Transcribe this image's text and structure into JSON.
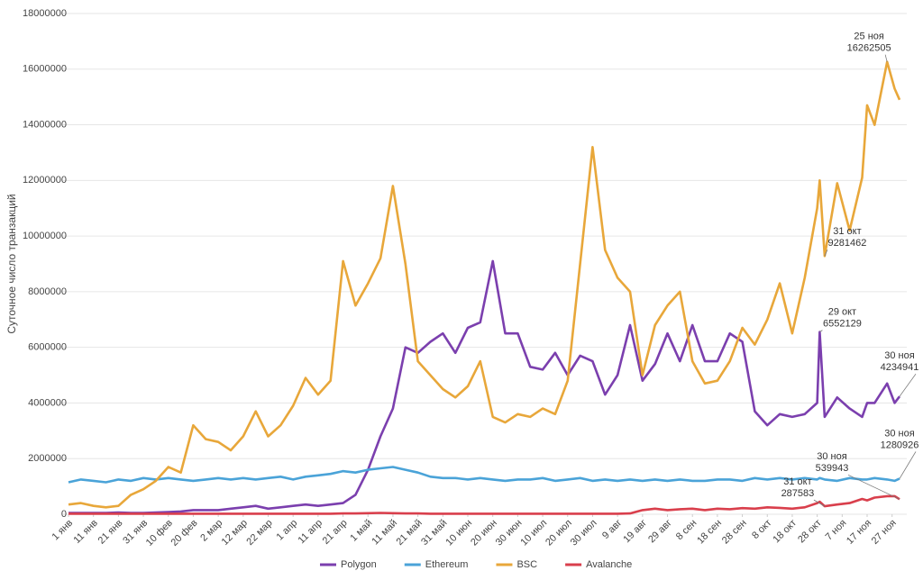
{
  "chart_data": {
    "type": "line",
    "y_label": "Суточное число транзакций",
    "x": [
      1,
      6,
      11,
      16,
      21,
      26,
      31,
      36,
      41,
      46,
      51,
      56,
      61,
      66,
      71,
      76,
      81,
      86,
      91,
      96,
      101,
      106,
      111,
      116,
      121,
      126,
      131,
      136,
      141,
      146,
      151,
      156,
      161,
      166,
      171,
      176,
      181,
      186,
      191,
      196,
      201,
      206,
      211,
      216,
      221,
      226,
      231,
      236,
      241,
      246,
      251,
      256,
      261,
      266,
      271,
      276,
      281,
      286,
      291,
      296,
      301,
      302,
      304,
      309,
      314,
      319,
      321,
      324,
      329,
      332,
      334
    ],
    "xlim": [
      1,
      334
    ],
    "xticks": [
      {
        "value": 1,
        "label": "1 янв"
      },
      {
        "value": 11,
        "label": "11 янв"
      },
      {
        "value": 21,
        "label": "21 янв"
      },
      {
        "value": 31,
        "label": "31 янв"
      },
      {
        "value": 41,
        "label": "10 фев"
      },
      {
        "value": 51,
        "label": "20 фев"
      },
      {
        "value": 61,
        "label": "2 мар"
      },
      {
        "value": 71,
        "label": "12 мар"
      },
      {
        "value": 81,
        "label": "22 мар"
      },
      {
        "value": 91,
        "label": "1 апр"
      },
      {
        "value": 101,
        "label": "11 апр"
      },
      {
        "value": 111,
        "label": "21 апр"
      },
      {
        "value": 121,
        "label": "1 май"
      },
      {
        "value": 131,
        "label": "11 май"
      },
      {
        "value": 141,
        "label": "21 май"
      },
      {
        "value": 151,
        "label": "31 май"
      },
      {
        "value": 161,
        "label": "10 июн"
      },
      {
        "value": 171,
        "label": "20 июн"
      },
      {
        "value": 181,
        "label": "30 июн"
      },
      {
        "value": 191,
        "label": "10 июл"
      },
      {
        "value": 201,
        "label": "20 июл"
      },
      {
        "value": 211,
        "label": "30 июл"
      },
      {
        "value": 221,
        "label": "9 авг"
      },
      {
        "value": 231,
        "label": "19 авг"
      },
      {
        "value": 241,
        "label": "29 авг"
      },
      {
        "value": 251,
        "label": "8 сен"
      },
      {
        "value": 261,
        "label": "18 сен"
      },
      {
        "value": 271,
        "label": "28 сен"
      },
      {
        "value": 281,
        "label": "8 окт"
      },
      {
        "value": 291,
        "label": "18 окт"
      },
      {
        "value": 301,
        "label": "28 окт"
      },
      {
        "value": 311,
        "label": "7 ноя"
      },
      {
        "value": 321,
        "label": "17 ноя"
      },
      {
        "value": 331,
        "label": "27 ноя"
      }
    ],
    "ylim": [
      0,
      18000000
    ],
    "yticks": [
      0,
      2000000,
      4000000,
      6000000,
      8000000,
      10000000,
      12000000,
      14000000,
      16000000,
      18000000
    ],
    "grid": true,
    "legend": "bottom",
    "series": [
      {
        "name": "Polygon",
        "color": "#7b3fae",
        "values": [
          50000,
          50000,
          50000,
          50000,
          60000,
          50000,
          50000,
          60000,
          80000,
          100000,
          150000,
          150000,
          150000,
          200000,
          250000,
          300000,
          200000,
          250000,
          300000,
          350000,
          300000,
          350000,
          400000,
          700000,
          1600000,
          2800000,
          3800000,
          6000000,
          5800000,
          6200000,
          6500000,
          5800000,
          6700000,
          6900000,
          9100000,
          6500000,
          6500000,
          5300000,
          5200000,
          5800000,
          5000000,
          5700000,
          5500000,
          4300000,
          5000000,
          6800000,
          4800000,
          5400000,
          6500000,
          5500000,
          6800000,
          5500000,
          5500000,
          6500000,
          6200000,
          3700000,
          3200000,
          3600000,
          3500000,
          3600000,
          4000000,
          6552129,
          3500000,
          4200000,
          3800000,
          3500000,
          4000000,
          4000000,
          4700000,
          4000000,
          4234941
        ]
      },
      {
        "name": "Ethereum",
        "color": "#4aa3d8",
        "values": [
          1150000,
          1250000,
          1200000,
          1150000,
          1250000,
          1200000,
          1300000,
          1250000,
          1300000,
          1250000,
          1200000,
          1250000,
          1300000,
          1250000,
          1300000,
          1250000,
          1300000,
          1350000,
          1250000,
          1350000,
          1400000,
          1450000,
          1550000,
          1500000,
          1600000,
          1650000,
          1700000,
          1600000,
          1500000,
          1350000,
          1300000,
          1300000,
          1250000,
          1300000,
          1250000,
          1200000,
          1250000,
          1250000,
          1300000,
          1200000,
          1250000,
          1300000,
          1200000,
          1250000,
          1200000,
          1250000,
          1200000,
          1250000,
          1200000,
          1250000,
          1200000,
          1200000,
          1250000,
          1250000,
          1200000,
          1300000,
          1250000,
          1300000,
          1250000,
          1300000,
          1250000,
          1300000,
          1250000,
          1200000,
          1300000,
          1250000,
          1250000,
          1300000,
          1250000,
          1200000,
          1280926
        ]
      },
      {
        "name": "BSC",
        "color": "#e8a73a",
        "values": [
          350000,
          400000,
          300000,
          250000,
          300000,
          700000,
          900000,
          1200000,
          1700000,
          1500000,
          3200000,
          2700000,
          2600000,
          2300000,
          2800000,
          3700000,
          2800000,
          3200000,
          3900000,
          4900000,
          4300000,
          4800000,
          9100000,
          7500000,
          8300000,
          9200000,
          11800000,
          9000000,
          5500000,
          5000000,
          4500000,
          4200000,
          4600000,
          5500000,
          3500000,
          3300000,
          3600000,
          3500000,
          3800000,
          3600000,
          4800000,
          9000000,
          13200000,
          9500000,
          8500000,
          8000000,
          5000000,
          6800000,
          7500000,
          8000000,
          5500000,
          4700000,
          4800000,
          5500000,
          6700000,
          6100000,
          7000000,
          8300000,
          6500000,
          8500000,
          11000000,
          12000000,
          9281462,
          11900000,
          10200000,
          12100000,
          14700000,
          14000000,
          16262505,
          15300000,
          14900000
        ]
      },
      {
        "name": "Avalanche",
        "color": "#d93f4c",
        "values": [
          20000,
          20000,
          20000,
          20000,
          20000,
          20000,
          20000,
          20000,
          20000,
          20000,
          20000,
          20000,
          20000,
          20000,
          20000,
          20000,
          20000,
          20000,
          20000,
          20000,
          20000,
          20000,
          30000,
          30000,
          40000,
          50000,
          40000,
          30000,
          30000,
          20000,
          20000,
          20000,
          20000,
          20000,
          20000,
          20000,
          20000,
          20000,
          20000,
          20000,
          20000,
          20000,
          20000,
          20000,
          20000,
          30000,
          150000,
          200000,
          150000,
          180000,
          200000,
          150000,
          200000,
          180000,
          220000,
          200000,
          250000,
          230000,
          200000,
          250000,
          400000,
          450000,
          287583,
          350000,
          400000,
          550000,
          500000,
          600000,
          650000,
          650000,
          539943
        ]
      }
    ],
    "annotations": [
      {
        "series": 2,
        "x": 329,
        "label": "25 ноя",
        "value": 16262505
      },
      {
        "series": 2,
        "x": 304,
        "label": "31 окт",
        "value": 9281462
      },
      {
        "series": 0,
        "x": 302,
        "label": "29 окт",
        "value": 6552129
      },
      {
        "series": 0,
        "x": 334,
        "label": "30 ноя",
        "value": 4234941
      },
      {
        "series": 1,
        "x": 334,
        "label": "30 ноя",
        "value": 1280926
      },
      {
        "series": 3,
        "x": 334,
        "label": "30 ноя",
        "value": 539943
      },
      {
        "series": 3,
        "x": 304,
        "label": "31 окт",
        "value": 287583
      }
    ]
  }
}
